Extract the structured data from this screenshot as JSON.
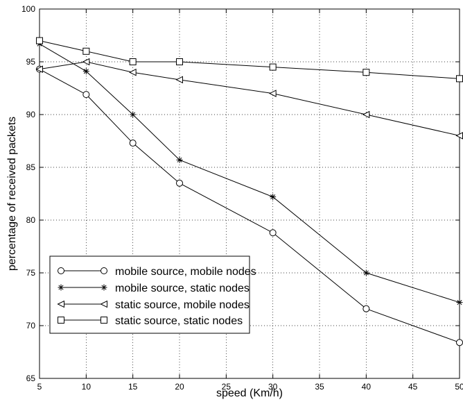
{
  "chart_data": {
    "type": "line",
    "title": "",
    "xlabel": "speed (Km/h)",
    "ylabel": "percentage of received packets",
    "xlim": [
      5,
      50
    ],
    "ylim": [
      65,
      100
    ],
    "xticks": [
      5,
      10,
      15,
      20,
      25,
      30,
      35,
      40,
      45,
      50
    ],
    "yticks": [
      65,
      70,
      75,
      80,
      85,
      90,
      95,
      100
    ],
    "grid": true,
    "legend_position": "bottom-left",
    "series": [
      {
        "name": "mobile source, mobile nodes",
        "marker": "circle",
        "x": [
          5,
          10,
          15,
          20,
          30,
          40,
          50
        ],
        "y": [
          94.3,
          91.9,
          87.3,
          83.5,
          78.8,
          71.6,
          68.4
        ]
      },
      {
        "name": "mobile source, static nodes",
        "marker": "asterisk",
        "x": [
          5,
          10,
          15,
          20,
          30,
          40,
          50
        ],
        "y": [
          96.7,
          94.1,
          90.0,
          85.7,
          82.2,
          75.0,
          72.2
        ]
      },
      {
        "name": "static source, mobile nodes",
        "marker": "triangle-left",
        "x": [
          5,
          10,
          15,
          20,
          30,
          40,
          50
        ],
        "y": [
          94.3,
          95.0,
          94.0,
          93.3,
          92.0,
          90.0,
          88.0
        ]
      },
      {
        "name": "static source, static nodes",
        "marker": "square",
        "x": [
          5,
          10,
          15,
          20,
          30,
          40,
          50
        ],
        "y": [
          97.0,
          96.0,
          95.0,
          95.0,
          94.5,
          94.0,
          93.4
        ]
      }
    ]
  }
}
